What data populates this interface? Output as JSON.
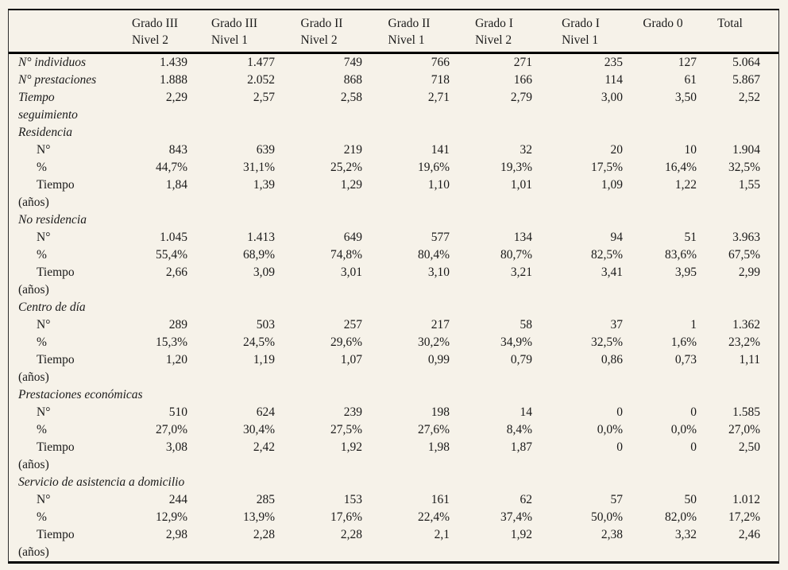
{
  "colors": {
    "background": "#f6f2e9",
    "text": "#1a1a1a",
    "rule": "#000000"
  },
  "table": {
    "columns": [
      {
        "line1": "Grado III",
        "line2": "Nivel 2"
      },
      {
        "line1": "Grado III",
        "line2": "Nivel 1"
      },
      {
        "line1": "Grado II",
        "line2": "Nivel 2"
      },
      {
        "line1": "Grado II",
        "line2": "Nivel 1"
      },
      {
        "line1": "Grado I",
        "line2": "Nivel 2"
      },
      {
        "line1": "Grado I",
        "line2": "Nivel 1"
      },
      {
        "line1": "Grado 0",
        "line2": ""
      },
      {
        "line1": "Total",
        "line2": ""
      }
    ],
    "rows": [
      {
        "label1": "N° individuos",
        "italic": true,
        "values": [
          "1.439",
          "1.477",
          "749",
          "766",
          "271",
          "235",
          "127",
          "5.064"
        ]
      },
      {
        "label1": "N° prestaciones",
        "italic": true,
        "values": [
          "1.888",
          "2.052",
          "868",
          "718",
          "166",
          "114",
          "61",
          "5.867"
        ]
      },
      {
        "label1": "Tiempo",
        "label2": "seguimiento",
        "italic": true,
        "values": [
          "2,29",
          "2,57",
          "2,58",
          "2,71",
          "2,79",
          "3,00",
          "3,50",
          "2,52"
        ]
      },
      {
        "label1": "Residencia",
        "italic": true,
        "section": true,
        "values": []
      },
      {
        "label1": "N°",
        "indent": true,
        "values": [
          "843",
          "639",
          "219",
          "141",
          "32",
          "20",
          "10",
          "1.904"
        ]
      },
      {
        "label1": "%",
        "indent": true,
        "values": [
          "44,7%",
          "31,1%",
          "25,2%",
          "19,6%",
          "19,3%",
          "17,5%",
          "16,4%",
          "32,5%"
        ]
      },
      {
        "label1": "Tiempo",
        "label2": "(años)",
        "indent": true,
        "values": [
          "1,84",
          "1,39",
          "1,29",
          "1,10",
          "1,01",
          "1,09",
          "1,22",
          "1,55"
        ]
      },
      {
        "label1": "No residencia",
        "italic": true,
        "section": true,
        "values": []
      },
      {
        "label1": "N°",
        "indent": true,
        "values": [
          "1.045",
          "1.413",
          "649",
          "577",
          "134",
          "94",
          "51",
          "3.963"
        ]
      },
      {
        "label1": "%",
        "indent": true,
        "values": [
          "55,4%",
          "68,9%",
          "74,8%",
          "80,4%",
          "80,7%",
          "82,5%",
          "83,6%",
          "67,5%"
        ]
      },
      {
        "label1": "Tiempo",
        "label2": "(años)",
        "indent": true,
        "values": [
          "2,66",
          "3,09",
          "3,01",
          "3,10",
          "3,21",
          "3,41",
          "3,95",
          "2,99"
        ]
      },
      {
        "label1": "Centro de día",
        "italic": true,
        "section": true,
        "values": []
      },
      {
        "label1": "N°",
        "indent": true,
        "values": [
          "289",
          "503",
          "257",
          "217",
          "58",
          "37",
          "1",
          "1.362"
        ]
      },
      {
        "label1": "%",
        "indent": true,
        "values": [
          "15,3%",
          "24,5%",
          "29,6%",
          "30,2%",
          "34,9%",
          "32,5%",
          "1,6%",
          "23,2%"
        ]
      },
      {
        "label1": "Tiempo",
        "label2": "(años)",
        "indent": true,
        "values": [
          "1,20",
          "1,19",
          "1,07",
          "0,99",
          "0,79",
          "0,86",
          "0,73",
          "1,11"
        ]
      },
      {
        "label1": "Prestaciones económicas",
        "italic": true,
        "section": true,
        "values": []
      },
      {
        "label1": "N°",
        "indent": true,
        "values": [
          "510",
          "624",
          "239",
          "198",
          "14",
          "0",
          "0",
          "1.585"
        ]
      },
      {
        "label1": "%",
        "indent": true,
        "values": [
          "27,0%",
          "30,4%",
          "27,5%",
          "27,6%",
          "8,4%",
          "0,0%",
          "0,0%",
          "27,0%"
        ]
      },
      {
        "label1": "Tiempo",
        "label2": "(años)",
        "indent": true,
        "values": [
          "3,08",
          "2,42",
          "1,92",
          "1,98",
          "1,87",
          "0",
          "0",
          "2,50"
        ]
      },
      {
        "label1": "Servicio de asistencia a domicilio",
        "italic": true,
        "section": true,
        "values": []
      },
      {
        "label1": "N°",
        "indent": true,
        "values": [
          "244",
          "285",
          "153",
          "161",
          "62",
          "57",
          "50",
          "1.012"
        ]
      },
      {
        "label1": "%",
        "indent": true,
        "values": [
          "12,9%",
          "13,9%",
          "17,6%",
          "22,4%",
          "37,4%",
          "50,0%",
          "82,0%",
          "17,2%"
        ]
      },
      {
        "label1": "Tiempo",
        "label2": "(años)",
        "indent": true,
        "values": [
          "2,98",
          "2,28",
          "2,28",
          "2,1",
          "1,92",
          "2,38",
          "3,32",
          "2,46"
        ]
      }
    ]
  }
}
